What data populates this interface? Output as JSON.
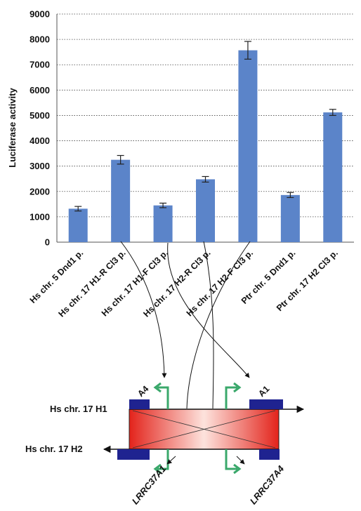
{
  "chart_data": {
    "type": "bar",
    "ylabel": "Luciferase activity",
    "ylim": [
      0,
      9000
    ],
    "yticks": [
      0,
      1000,
      2000,
      3000,
      4000,
      5000,
      6000,
      7000,
      8000,
      9000
    ],
    "grid": true,
    "categories": [
      "Hs chr. 5 Dnd1 p.",
      "Hs chr. 17 H1-R Cl3 p.",
      "Hs chr. 17 H1-F Cl3 p.",
      "Hs chr. 17 H2-R Cl3 p.",
      "Hs chr. 17 H2-F Cl3 p.",
      "Ptr chr. 5 Dnd1 p.",
      "Ptr chr. 17 H2 Cl3 p."
    ],
    "values": [
      1320,
      3250,
      1450,
      2480,
      7570,
      1860,
      5120
    ],
    "errors": [
      90,
      170,
      90,
      110,
      350,
      100,
      120
    ],
    "bar_color": "#5b84c9"
  },
  "diagram": {
    "h1_label": "Hs chr. 17 H1",
    "h2_label": "Hs chr. 17 H2",
    "exon_left_label": "A4",
    "exon_right_label": "A1",
    "gene_left": "LRRC37A1",
    "gene_right": "LRRC37A4",
    "exon_color": "#1f2390",
    "promoter_arrow_color": "#3aa86b"
  }
}
